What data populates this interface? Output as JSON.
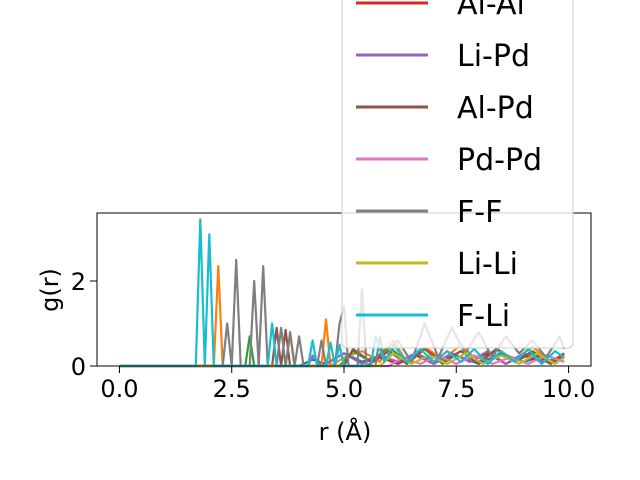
{
  "chart_data": {
    "type": "line",
    "title": "",
    "xlabel": "r (Å)",
    "ylabel": "g(r)",
    "xlim": [
      -0.5,
      10.5
    ],
    "ylim": [
      0,
      3.6
    ],
    "x_ticks": [
      "0.0",
      "2.5",
      "5.0",
      "7.5",
      "10.0"
    ],
    "y_ticks": [
      "0",
      "2"
    ],
    "grid": false,
    "legend_position": "upper-right",
    "series": [
      {
        "name": "",
        "color": "#1f77b4",
        "points": [
          [
            0,
            0
          ],
          [
            4,
            0
          ],
          [
            4.3,
            0.15
          ],
          [
            4.6,
            0.05
          ],
          [
            5.0,
            0.3
          ],
          [
            5.4,
            0.1
          ],
          [
            5.8,
            0.25
          ],
          [
            6.2,
            0.05
          ],
          [
            6.6,
            0.3
          ],
          [
            7.0,
            0.1
          ],
          [
            7.5,
            0.25
          ],
          [
            8.0,
            0.05
          ],
          [
            8.5,
            0.3
          ],
          [
            9.0,
            0.1
          ],
          [
            9.5,
            0.25
          ],
          [
            9.9,
            0.1
          ]
        ]
      },
      {
        "name": "",
        "color": "#ff7f0e",
        "points": [
          [
            0,
            0
          ],
          [
            2.1,
            0
          ],
          [
            2.2,
            2.35
          ],
          [
            2.3,
            0
          ],
          [
            3.7,
            0
          ],
          [
            3.8,
            0.75
          ],
          [
            3.9,
            0
          ],
          [
            4.5,
            0
          ],
          [
            4.6,
            1.1
          ],
          [
            4.7,
            0
          ],
          [
            5.0,
            0.2
          ],
          [
            5.4,
            0.35
          ],
          [
            5.8,
            0.1
          ],
          [
            6.1,
            0.6
          ],
          [
            6.4,
            0.1
          ],
          [
            6.8,
            0.45
          ],
          [
            7.2,
            0.15
          ],
          [
            7.6,
            0.5
          ],
          [
            8.0,
            0.1
          ],
          [
            8.4,
            0.4
          ],
          [
            8.8,
            0.15
          ],
          [
            9.2,
            0.45
          ],
          [
            9.6,
            0.1
          ],
          [
            9.9,
            0.3
          ]
        ]
      },
      {
        "name": "",
        "color": "#2ca02c",
        "points": [
          [
            0,
            0
          ],
          [
            2.8,
            0
          ],
          [
            2.9,
            0.7
          ],
          [
            3.0,
            0
          ],
          [
            4.9,
            0
          ],
          [
            5.2,
            0.35
          ],
          [
            5.6,
            0.1
          ],
          [
            6.0,
            0.45
          ],
          [
            6.4,
            0.1
          ],
          [
            6.8,
            0.4
          ],
          [
            7.2,
            0.05
          ],
          [
            7.6,
            0.35
          ],
          [
            8.0,
            0.1
          ],
          [
            8.4,
            0.4
          ],
          [
            8.8,
            0.1
          ],
          [
            9.2,
            0.3
          ],
          [
            9.6,
            0.05
          ],
          [
            9.9,
            0.25
          ]
        ]
      },
      {
        "name": "Al-Al",
        "color": "#d62728",
        "points": [
          [
            0,
            0
          ],
          [
            5.5,
            0
          ],
          [
            5.8,
            0.2
          ],
          [
            6.2,
            0.05
          ],
          [
            6.6,
            0.25
          ],
          [
            7.0,
            0.05
          ],
          [
            7.4,
            0.3
          ],
          [
            7.8,
            0.1
          ],
          [
            8.2,
            0.3
          ],
          [
            8.6,
            0.05
          ],
          [
            9.0,
            0.25
          ],
          [
            9.4,
            0.1
          ],
          [
            9.9,
            0.2
          ]
        ]
      },
      {
        "name": "Li-Pd",
        "color": "#9467bd",
        "points": [
          [
            0,
            0
          ],
          [
            4.2,
            0
          ],
          [
            4.3,
            0.25
          ],
          [
            4.5,
            0
          ],
          [
            5.0,
            0.3
          ],
          [
            5.4,
            0.05
          ],
          [
            5.8,
            0.25
          ],
          [
            6.2,
            0.1
          ],
          [
            6.6,
            0.3
          ],
          [
            7.0,
            0.05
          ],
          [
            7.4,
            0.3
          ],
          [
            7.8,
            0.1
          ],
          [
            8.2,
            0.35
          ],
          [
            8.6,
            0.05
          ],
          [
            9.0,
            0.3
          ],
          [
            9.5,
            0.1
          ],
          [
            9.9,
            0.25
          ]
        ]
      },
      {
        "name": "Al-Pd",
        "color": "#8c564b",
        "points": [
          [
            0,
            0
          ],
          [
            3.4,
            0
          ],
          [
            3.5,
            0.9
          ],
          [
            3.6,
            0
          ],
          [
            3.7,
            0.85
          ],
          [
            3.8,
            0
          ],
          [
            5.0,
            0
          ],
          [
            5.2,
            0.4
          ],
          [
            5.6,
            0.1
          ],
          [
            6.0,
            0.35
          ],
          [
            6.4,
            0.05
          ],
          [
            6.8,
            0.4
          ],
          [
            7.2,
            0.1
          ],
          [
            7.6,
            0.35
          ],
          [
            8.0,
            0.05
          ],
          [
            8.4,
            0.4
          ],
          [
            8.8,
            0.1
          ],
          [
            9.2,
            0.35
          ],
          [
            9.6,
            0.05
          ],
          [
            9.9,
            0.3
          ]
        ]
      },
      {
        "name": "Pd-Pd",
        "color": "#e377c2",
        "points": [
          [
            0,
            0
          ],
          [
            6.0,
            0
          ],
          [
            6.3,
            0.2
          ],
          [
            6.7,
            0.05
          ],
          [
            7.1,
            0.25
          ],
          [
            7.5,
            0.05
          ],
          [
            7.9,
            0.25
          ],
          [
            8.3,
            0.05
          ],
          [
            8.7,
            0.2
          ],
          [
            9.1,
            0.05
          ],
          [
            9.5,
            0.25
          ],
          [
            9.9,
            0.1
          ]
        ]
      },
      {
        "name": "F-F",
        "color": "#7f7f7f",
        "points": [
          [
            0,
            0
          ],
          [
            2.3,
            0
          ],
          [
            2.4,
            1.0
          ],
          [
            2.5,
            0
          ],
          [
            2.6,
            2.5
          ],
          [
            2.7,
            0
          ],
          [
            2.9,
            0
          ],
          [
            3.0,
            2.0
          ],
          [
            3.1,
            0
          ],
          [
            3.2,
            2.35
          ],
          [
            3.3,
            0
          ],
          [
            3.5,
            0
          ],
          [
            3.6,
            0.9
          ],
          [
            3.7,
            0
          ],
          [
            3.8,
            0.8
          ],
          [
            3.9,
            0
          ],
          [
            4.0,
            0.7
          ],
          [
            4.1,
            0
          ],
          [
            4.4,
            0
          ],
          [
            4.5,
            0.6
          ],
          [
            4.6,
            0
          ],
          [
            4.8,
            0
          ],
          [
            4.9,
            1.0
          ],
          [
            5.0,
            1.4
          ],
          [
            5.1,
            0
          ],
          [
            5.3,
            0
          ],
          [
            5.4,
            1.8
          ],
          [
            5.5,
            0
          ],
          [
            5.7,
            0
          ],
          [
            5.8,
            0.7
          ],
          [
            5.9,
            0.1
          ],
          [
            6.2,
            0.6
          ],
          [
            6.5,
            0.1
          ],
          [
            6.8,
            1.0
          ],
          [
            7.1,
            0.2
          ],
          [
            7.4,
            0.9
          ],
          [
            7.7,
            0.3
          ],
          [
            8.0,
            0.8
          ],
          [
            8.3,
            0.2
          ],
          [
            8.6,
            0.7
          ],
          [
            8.9,
            0.3
          ],
          [
            9.2,
            0.6
          ],
          [
            9.5,
            0.2
          ],
          [
            9.8,
            0.7
          ],
          [
            9.9,
            0.4
          ]
        ]
      },
      {
        "name": "Li-Li",
        "color": "#bcbd22",
        "points": [
          [
            0,
            0
          ],
          [
            5.8,
            0
          ],
          [
            6.1,
            0.3
          ],
          [
            6.5,
            0.05
          ],
          [
            6.9,
            0.25
          ],
          [
            7.3,
            0.05
          ],
          [
            7.7,
            0.3
          ],
          [
            8.1,
            0.05
          ],
          [
            8.5,
            0.25
          ],
          [
            8.9,
            0.05
          ],
          [
            9.3,
            0.3
          ],
          [
            9.7,
            0.05
          ],
          [
            9.9,
            0.2
          ]
        ]
      },
      {
        "name": "F-Li",
        "color": "#17becf",
        "points": [
          [
            0,
            0
          ],
          [
            1.7,
            0
          ],
          [
            1.8,
            3.45
          ],
          [
            1.9,
            0
          ],
          [
            2.0,
            3.1
          ],
          [
            2.1,
            0
          ],
          [
            3.3,
            0
          ],
          [
            3.4,
            1.0
          ],
          [
            3.5,
            0
          ],
          [
            4.2,
            0
          ],
          [
            4.3,
            0.6
          ],
          [
            4.4,
            0
          ],
          [
            4.6,
            0
          ],
          [
            4.7,
            0.55
          ],
          [
            4.8,
            0
          ],
          [
            4.9,
            0.5
          ],
          [
            5.0,
            0
          ],
          [
            5.6,
            0
          ],
          [
            5.7,
            0.7
          ],
          [
            5.9,
            0.1
          ],
          [
            6.1,
            0.5
          ],
          [
            6.4,
            0.1
          ],
          [
            6.7,
            0.4
          ],
          [
            7.0,
            0.1
          ],
          [
            7.3,
            0.35
          ],
          [
            7.6,
            0.1
          ],
          [
            7.9,
            0.4
          ],
          [
            8.2,
            0.05
          ],
          [
            8.5,
            0.35
          ],
          [
            8.8,
            0.1
          ],
          [
            9.1,
            0.4
          ],
          [
            9.4,
            0.05
          ],
          [
            9.7,
            0.35
          ],
          [
            9.9,
            0.2
          ]
        ]
      }
    ]
  }
}
